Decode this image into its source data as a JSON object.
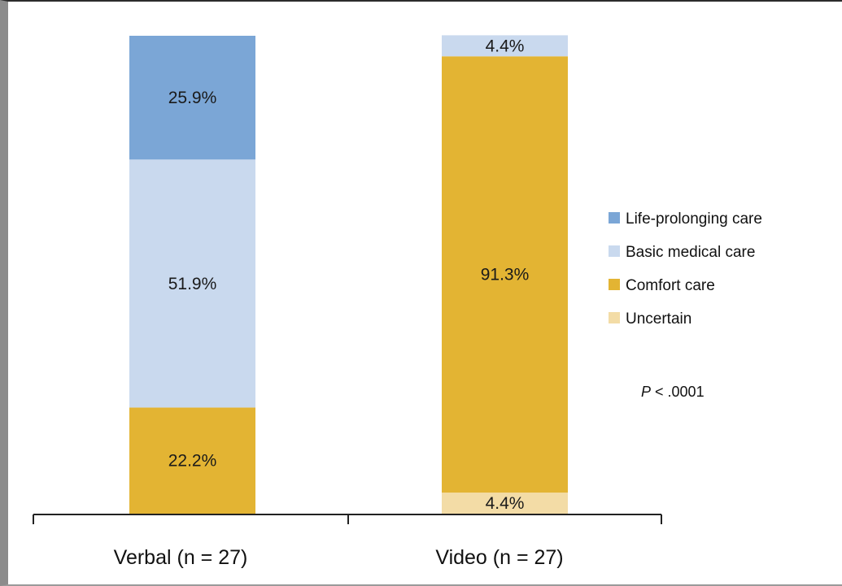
{
  "chart_data": {
    "type": "bar",
    "stacked": true,
    "normalized_percent": true,
    "categories": [
      "Verbal (n = 27)",
      "Video (n = 27)"
    ],
    "series": [
      {
        "name": "Uncertain",
        "values": [
          0,
          4.4
        ],
        "labels": [
          "",
          "4.4%"
        ],
        "color": "#f3dca6"
      },
      {
        "name": "Comfort care",
        "values": [
          22.2,
          91.3
        ],
        "labels": [
          "22.2%",
          "91.3%"
        ],
        "color": "#e3b433"
      },
      {
        "name": "Basic medical care",
        "values": [
          51.9,
          4.4
        ],
        "labels": [
          "51.9%",
          "4.4%"
        ],
        "color": "#c9d9ee"
      },
      {
        "name": "Life-prolonging care",
        "values": [
          25.9,
          0
        ],
        "labels": [
          "25.9%",
          ""
        ],
        "color": "#7ba6d6"
      }
    ],
    "legend": {
      "placement": "right",
      "order": [
        "Life-prolonging care",
        "Basic medical care",
        "Comfort care",
        "Uncertain"
      ]
    },
    "annotation": {
      "italic": "P",
      "text": " < .0001"
    },
    "title": "",
    "xlabel": "",
    "ylabel": "",
    "ylim": [
      0,
      100
    ],
    "grid": false
  }
}
